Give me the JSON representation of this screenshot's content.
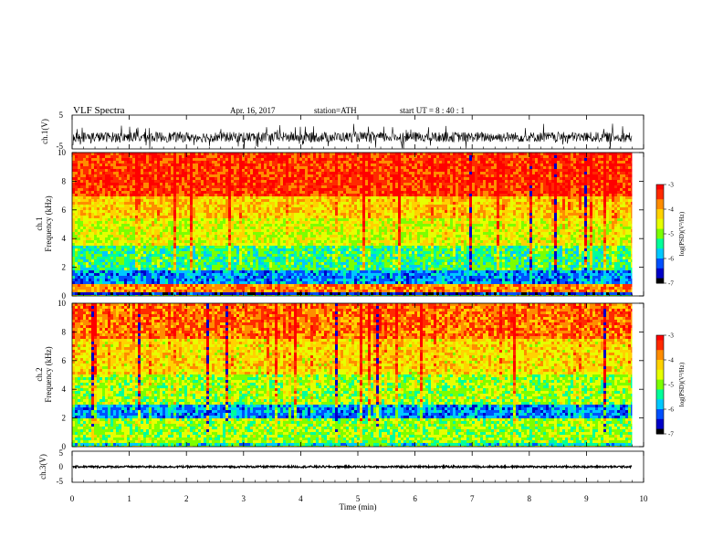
{
  "header": {
    "title": "VLF  Spectra",
    "date": "Apr. 16, 2017",
    "station": "station=ATH",
    "start_ut": "start  UT  =    8  : 40 : 1"
  },
  "colormap": [
    "#000000",
    "#0000c8",
    "#0050ff",
    "#00c8ff",
    "#00ff9a",
    "#7cff00",
    "#e6ff00",
    "#ffd200",
    "#ff8c00",
    "#ff2a00",
    "#ff0000"
  ],
  "chart_data": [
    {
      "type": "line",
      "name": "ch1-waveform",
      "ylabel": "ch.1(V)",
      "ylim": [
        -5,
        5
      ],
      "yticks": [
        "5",
        "-5"
      ],
      "mean": -1.5,
      "amplitude_typical": 1.5,
      "spike_extent": [
        -5,
        2.5
      ],
      "color": "#000000"
    },
    {
      "type": "heatmap",
      "name": "ch1-spectrogram",
      "ylabel_line1": "ch.1",
      "ylabel_line2": "Frequency  (kHz)",
      "ylim": [
        0,
        10
      ],
      "yticks": [
        "0",
        "2",
        "4",
        "6",
        "8",
        "10"
      ],
      "bands_khz": [
        {
          "range": [
            0,
            0.3
          ],
          "level": -6.5
        },
        {
          "range": [
            0.3,
            0.9
          ],
          "level": -3.8
        },
        {
          "range": [
            0.9,
            1.8
          ],
          "level": -6.0
        },
        {
          "range": [
            1.8,
            3.5
          ],
          "level": -5.3
        },
        {
          "range": [
            3.5,
            5.5
          ],
          "level": -4.6
        },
        {
          "range": [
            5.5,
            7.0
          ],
          "level": -4.2
        },
        {
          "range": [
            7.0,
            10.0
          ],
          "level": -3.4
        }
      ],
      "colorbar": {
        "label": "log(PSD)(V²/Hz)",
        "range": [
          -7,
          -3
        ],
        "ticks": [
          "-3",
          "-4",
          "-5",
          "-6",
          "-7"
        ]
      }
    },
    {
      "type": "heatmap",
      "name": "ch2-spectrogram",
      "ylabel_line1": "ch.2",
      "ylabel_line2": "Frequency  (kHz)",
      "ylim": [
        0,
        10
      ],
      "yticks": [
        "0",
        "2",
        "4",
        "6",
        "8",
        "10"
      ],
      "bands_khz": [
        {
          "range": [
            0,
            0.3
          ],
          "level": -5.6
        },
        {
          "range": [
            0.3,
            2.0
          ],
          "level": -4.9
        },
        {
          "range": [
            2.0,
            3.0
          ],
          "level": -6.0
        },
        {
          "range": [
            3.0,
            5.0
          ],
          "level": -4.9
        },
        {
          "range": [
            5.0,
            7.5
          ],
          "level": -4.3
        },
        {
          "range": [
            7.5,
            10.0
          ],
          "level": -3.7
        }
      ],
      "colorbar": {
        "label": "log(PSD)(V²/Hz)",
        "range": [
          -7,
          -3
        ],
        "ticks": [
          "-3",
          "-4",
          "-5",
          "-6",
          "-7"
        ]
      }
    },
    {
      "type": "line",
      "name": "ch3-waveform",
      "ylabel": "ch.3(V)",
      "ylim": [
        -5,
        5
      ],
      "yticks": [
        "5",
        "0",
        "-5"
      ],
      "mean": 0,
      "amplitude_typical": 0.3,
      "color": "#000000"
    }
  ],
  "x_axis": {
    "label": "Time  (min)",
    "range": [
      0,
      10
    ],
    "data_end": 9.8,
    "ticks": [
      "0",
      "1",
      "2",
      "3",
      "4",
      "5",
      "6",
      "7",
      "8",
      "9",
      "10"
    ]
  }
}
